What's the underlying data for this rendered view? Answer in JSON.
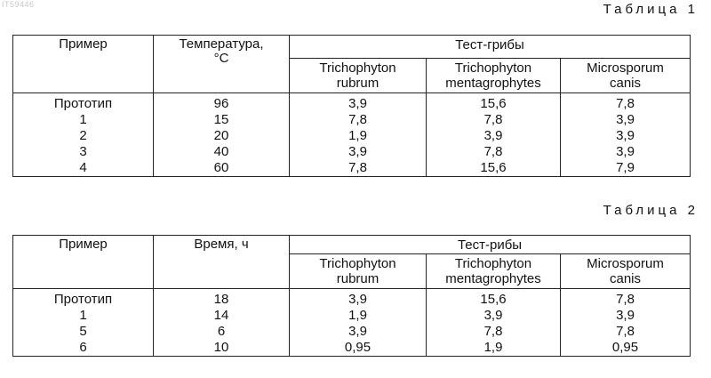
{
  "watermark": "IT59446",
  "table1": {
    "caption": "Таблица 1",
    "headers": {
      "example": "Пример",
      "param": "Температура,",
      "param_unit": "°C",
      "group": "Тест-грибы",
      "fungi": [
        {
          "line1": "Trichophyton",
          "line2": "rubrum"
        },
        {
          "line1": "Trichophyton",
          "line2": "mentagrophytes"
        },
        {
          "line1": "Microsporum",
          "line2": "canis"
        }
      ]
    },
    "rows": [
      [
        "Прототип",
        "96",
        "3,9",
        "15,6",
        "7,8"
      ],
      [
        "1",
        "15",
        "7,8",
        "7,8",
        "3,9"
      ],
      [
        "2",
        "20",
        "1,9",
        "3,9",
        "3,9"
      ],
      [
        "3",
        "40",
        "3,9",
        "7,8",
        "3,9"
      ],
      [
        "4",
        "60",
        "7,8",
        "15,6",
        "7,9"
      ]
    ]
  },
  "table2": {
    "caption": "Таблица 2",
    "headers": {
      "example": "Пример",
      "param": "Время, ч",
      "group": "Тест-рибы",
      "fungi": [
        {
          "line1": "Trichophyton",
          "line2": "rubrum"
        },
        {
          "line1": "Trichophyton",
          "line2": "mentagrophytes"
        },
        {
          "line1": "Microsporum",
          "line2": "canis"
        }
      ]
    },
    "rows": [
      [
        "Прототип",
        "18",
        "3,9",
        "15,6",
        "7,8"
      ],
      [
        "1",
        "14",
        "1,9",
        "3,9",
        "3,9"
      ],
      [
        "5",
        "6",
        "3,9",
        "7,8",
        "7,8"
      ],
      [
        "6",
        "10",
        "0,95",
        "1,9",
        "0,95"
      ]
    ]
  }
}
